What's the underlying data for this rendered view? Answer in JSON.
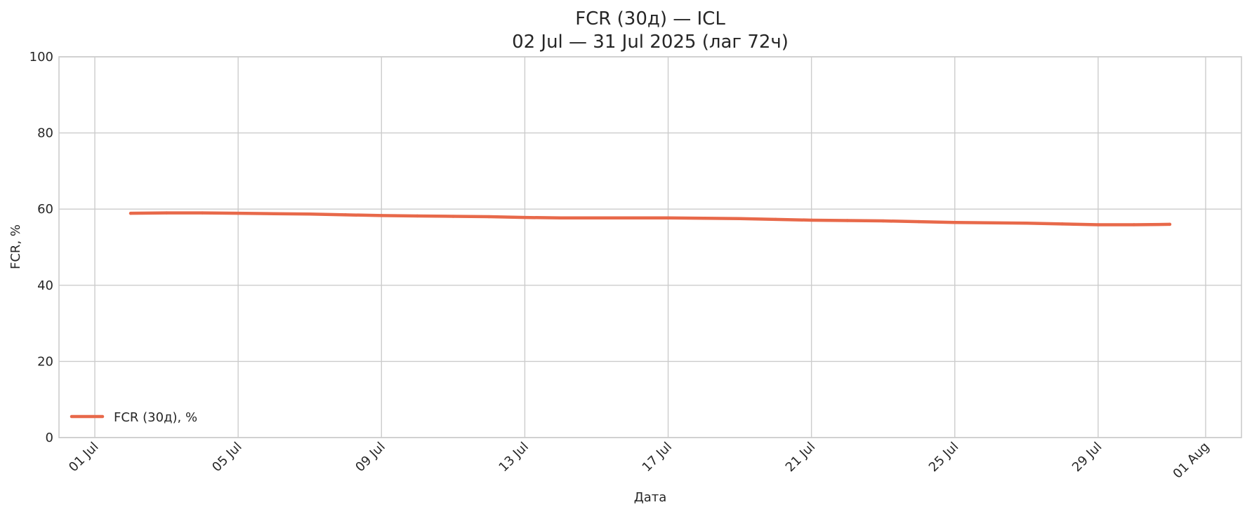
{
  "chart_data": {
    "type": "line",
    "title": "FCR (30д) — ICL",
    "subtitle": "02 Jul — 31 Jul 2025 (лаг 72ч)",
    "xlabel": "Дата",
    "ylabel": "FCR, %",
    "xlim": [
      "2025-06-30",
      "2025-08-02"
    ],
    "ylim": [
      0,
      100
    ],
    "yticks": [
      0,
      20,
      40,
      60,
      80,
      100
    ],
    "xticks": [
      {
        "date": "2025-07-01",
        "label": "01 Jul"
      },
      {
        "date": "2025-07-05",
        "label": "05 Jul"
      },
      {
        "date": "2025-07-09",
        "label": "09 Jul"
      },
      {
        "date": "2025-07-13",
        "label": "13 Jul"
      },
      {
        "date": "2025-07-17",
        "label": "17 Jul"
      },
      {
        "date": "2025-07-21",
        "label": "21 Jul"
      },
      {
        "date": "2025-07-25",
        "label": "25 Jul"
      },
      {
        "date": "2025-07-29",
        "label": "29 Jul"
      },
      {
        "date": "2025-08-01",
        "label": "01 Aug"
      }
    ],
    "grid": true,
    "legend_position": "bottom-left",
    "series": [
      {
        "name": "FCR (30д), %",
        "color": "#e8694a",
        "x": [
          "2025-07-02",
          "2025-07-03",
          "2025-07-04",
          "2025-07-05",
          "2025-07-06",
          "2025-07-07",
          "2025-07-08",
          "2025-07-09",
          "2025-07-10",
          "2025-07-11",
          "2025-07-12",
          "2025-07-13",
          "2025-07-14",
          "2025-07-15",
          "2025-07-16",
          "2025-07-17",
          "2025-07-18",
          "2025-07-19",
          "2025-07-20",
          "2025-07-21",
          "2025-07-22",
          "2025-07-23",
          "2025-07-24",
          "2025-07-25",
          "2025-07-26",
          "2025-07-27",
          "2025-07-28",
          "2025-07-29",
          "2025-07-30",
          "2025-07-31"
        ],
        "y": [
          58.9,
          59.0,
          59.0,
          58.9,
          58.8,
          58.7,
          58.5,
          58.3,
          58.2,
          58.1,
          58.0,
          57.8,
          57.7,
          57.7,
          57.7,
          57.7,
          57.6,
          57.5,
          57.3,
          57.1,
          57.0,
          56.9,
          56.7,
          56.5,
          56.4,
          56.3,
          56.1,
          55.9,
          55.9,
          56.0
        ]
      }
    ]
  }
}
